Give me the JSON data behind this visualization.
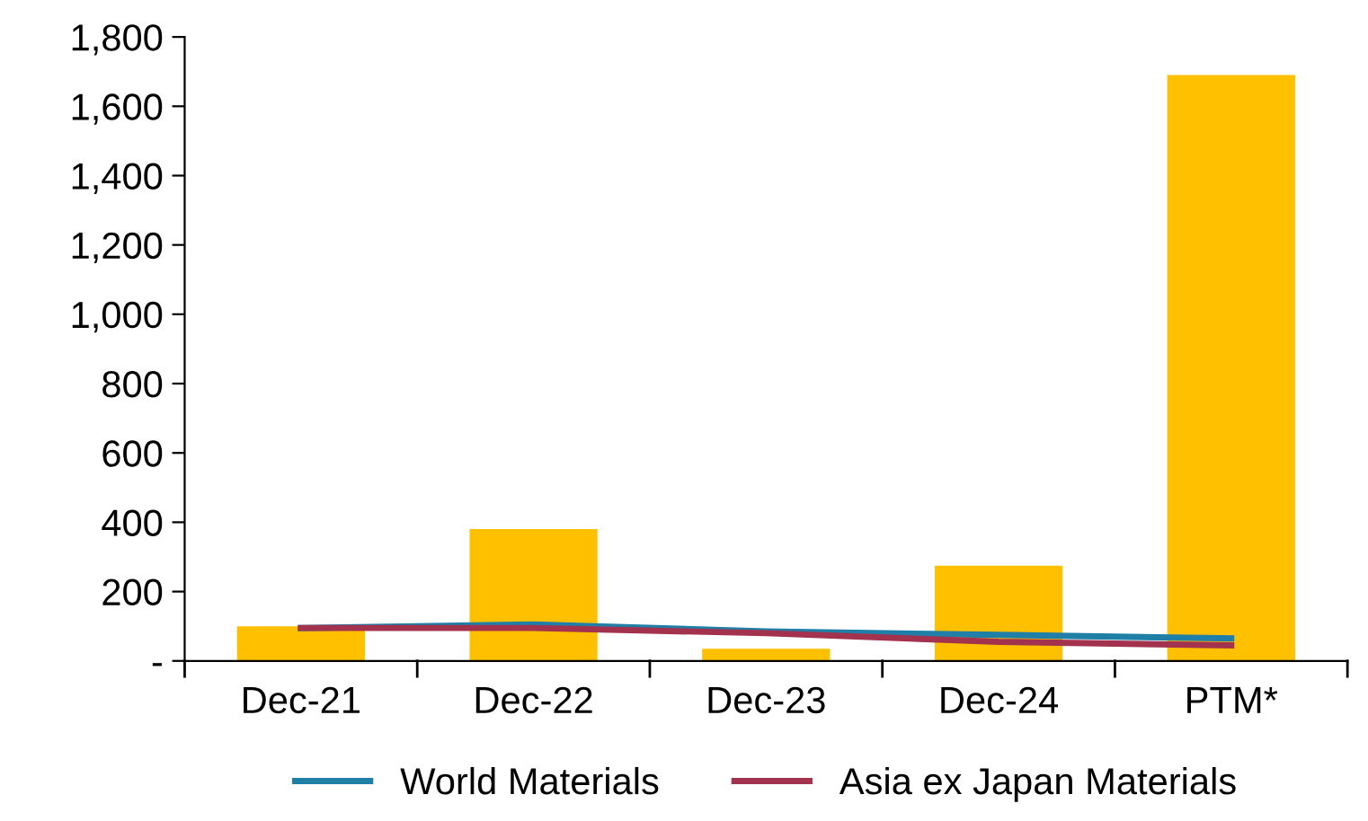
{
  "chart_data": {
    "type": "bar",
    "categories": [
      "Dec-21",
      "Dec-22",
      "Dec-23",
      "Dec-24",
      "PTM*"
    ],
    "series": [
      {
        "color": "#ffc000",
        "values": [
          100,
          380,
          35,
          275,
          1690
        ]
      },
      {
        "type": "line",
        "name": "World Materials",
        "color": "#1f7fa6",
        "values": [
          95,
          105,
          85,
          75,
          65
        ]
      },
      {
        "type": "line",
        "name": "Asia ex Japan Materials",
        "color": "#a3324f",
        "values": [
          95,
          95,
          80,
          55,
          45
        ]
      }
    ],
    "ylim": [
      0,
      1800
    ],
    "yticks": [
      {
        "value": 0,
        "label": "-"
      },
      {
        "value": 200,
        "label": "200"
      },
      {
        "value": 400,
        "label": "400"
      },
      {
        "value": 600,
        "label": "600"
      },
      {
        "value": 800,
        "label": "800"
      },
      {
        "value": 1000,
        "label": "1,000"
      },
      {
        "value": 1200,
        "label": "1,200"
      },
      {
        "value": 1400,
        "label": "1,400"
      },
      {
        "value": 1600,
        "label": "1,600"
      },
      {
        "value": 1800,
        "label": "1,800"
      }
    ],
    "grid": false,
    "legend": "bottom",
    "marker": "none",
    "line_style": "solid"
  }
}
